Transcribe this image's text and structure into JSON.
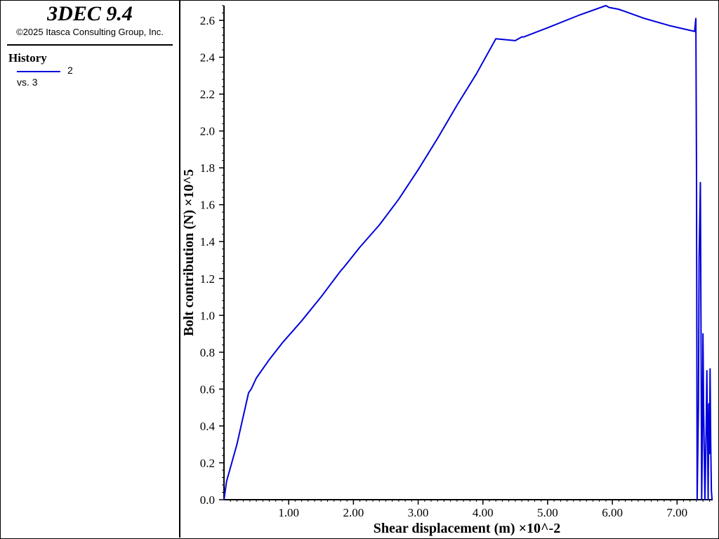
{
  "app": {
    "title": "3DEC 9.4",
    "copyright": "©2025 Itasca Consulting Group, Inc."
  },
  "legend": {
    "heading": "History",
    "entries": [
      {
        "id": "2",
        "vs": "vs. 3",
        "color": "#0000dd"
      }
    ]
  },
  "chart_data": {
    "type": "line",
    "xlabel": "Shear displacement (m) ×10^-2",
    "ylabel": "Bolt contribution (N) ×10^5",
    "xlim": [
      0.0,
      7.55
    ],
    "ylim": [
      0.0,
      2.68
    ],
    "x_ticks": [
      1.0,
      2.0,
      3.0,
      4.0,
      5.0,
      6.0,
      7.0
    ],
    "x_tick_labels": [
      "1.00",
      "2.00",
      "3.00",
      "4.00",
      "5.00",
      "6.00",
      "7.00"
    ],
    "y_ticks": [
      0.0,
      0.2,
      0.4,
      0.6,
      0.8,
      1.0,
      1.2,
      1.4,
      1.6,
      1.8,
      2.0,
      2.2,
      2.4,
      2.6
    ],
    "y_tick_labels": [
      "0.0",
      "0.2",
      "0.4",
      "0.6",
      "0.8",
      "1.0",
      "1.2",
      "1.4",
      "1.6",
      "1.8",
      "2.0",
      "2.2",
      "2.4",
      "2.6"
    ],
    "grid": false,
    "series": [
      {
        "color": "#0000dd",
        "x": [
          0.0,
          0.04,
          0.2,
          0.38,
          0.42,
          0.5,
          0.7,
          0.9,
          1.2,
          1.5,
          1.8,
          1.85,
          2.1,
          2.4,
          2.7,
          3.0,
          3.3,
          3.6,
          3.9,
          4.2,
          4.5,
          4.6,
          4.63,
          5.0,
          5.5,
          5.9,
          5.95,
          6.1,
          6.5,
          6.9,
          7.27,
          7.29,
          7.3,
          7.31,
          7.33,
          7.34,
          7.36,
          7.37,
          7.38,
          7.39,
          7.4,
          7.41,
          7.43,
          7.45,
          7.46,
          7.47,
          7.48,
          7.49,
          7.5,
          7.51,
          7.52,
          7.53,
          7.54
        ],
        "y": [
          0.0,
          0.1,
          0.3,
          0.58,
          0.6,
          0.66,
          0.76,
          0.85,
          0.97,
          1.1,
          1.24,
          1.26,
          1.37,
          1.49,
          1.63,
          1.79,
          1.96,
          2.14,
          2.31,
          2.5,
          2.49,
          2.51,
          2.51,
          2.56,
          2.63,
          2.68,
          2.67,
          2.66,
          2.61,
          2.57,
          2.54,
          2.61,
          1.8,
          0.0,
          0.5,
          1.3,
          1.72,
          0.9,
          0.0,
          0.3,
          0.9,
          0.5,
          0.0,
          0.4,
          0.7,
          0.35,
          0.0,
          0.52,
          0.25,
          0.71,
          0.3,
          0.05,
          0.0
        ]
      }
    ]
  }
}
